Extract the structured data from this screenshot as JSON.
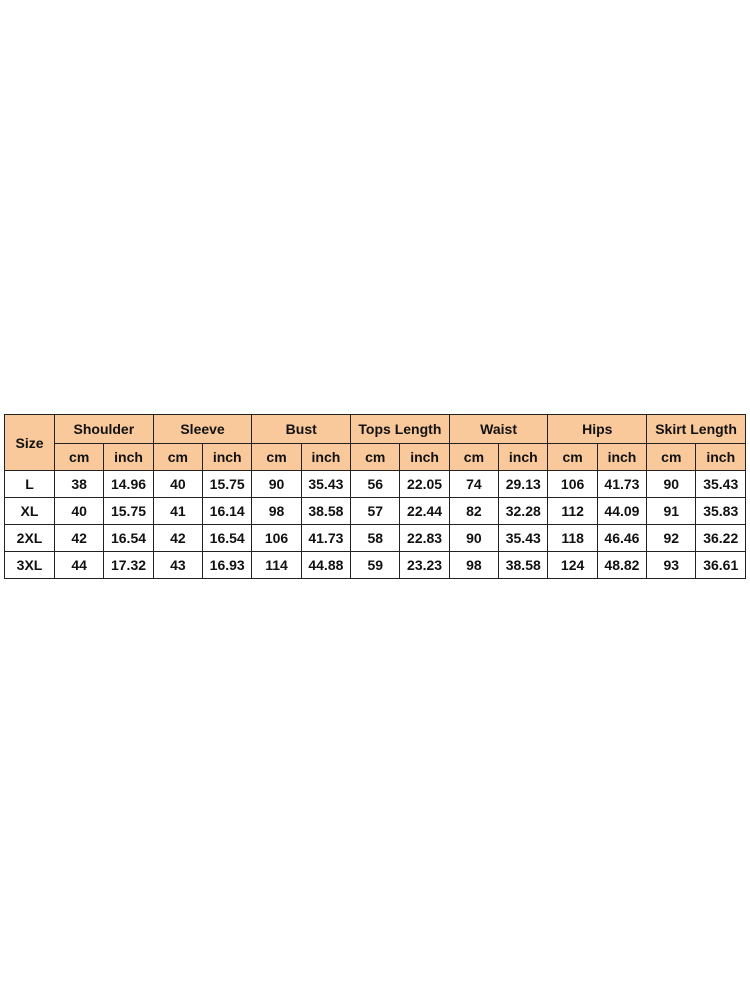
{
  "header_color": "#fac99b",
  "size_label": "Size",
  "groups": [
    "Shoulder",
    "Sleeve",
    "Bust",
    "Tops Length",
    "Waist",
    "Hips",
    "Skirt Length"
  ],
  "units": [
    "cm",
    "inch"
  ],
  "rows": [
    {
      "size": "L",
      "values": [
        "38",
        "14.96",
        "40",
        "15.75",
        "90",
        "35.43",
        "56",
        "22.05",
        "74",
        "29.13",
        "106",
        "41.73",
        "90",
        "35.43"
      ]
    },
    {
      "size": "XL",
      "values": [
        "40",
        "15.75",
        "41",
        "16.14",
        "98",
        "38.58",
        "57",
        "22.44",
        "82",
        "32.28",
        "112",
        "44.09",
        "91",
        "35.83"
      ]
    },
    {
      "size": "2XL",
      "values": [
        "42",
        "16.54",
        "42",
        "16.54",
        "106",
        "41.73",
        "58",
        "22.83",
        "90",
        "35.43",
        "118",
        "46.46",
        "92",
        "36.22"
      ]
    },
    {
      "size": "3XL",
      "values": [
        "44",
        "17.32",
        "43",
        "16.93",
        "114",
        "44.88",
        "59",
        "23.23",
        "98",
        "38.58",
        "124",
        "48.82",
        "93",
        "36.61"
      ]
    }
  ]
}
